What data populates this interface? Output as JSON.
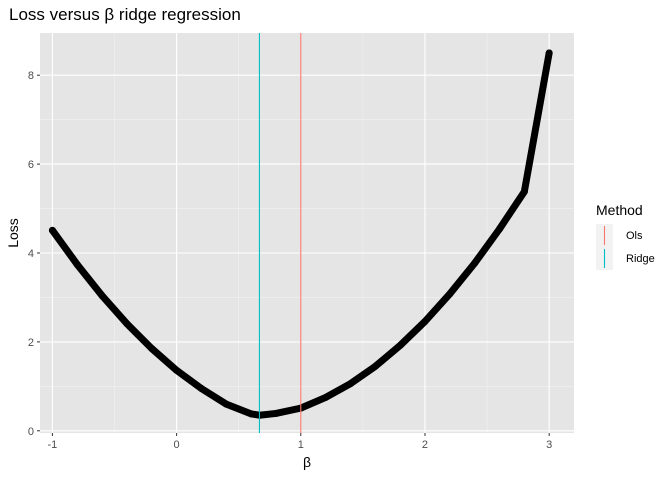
{
  "chart_data": {
    "type": "scatter",
    "title": "Loss versus β ridge regression",
    "xlabel": "β",
    "ylabel": "Loss",
    "xlim": [
      -1.1,
      3.2
    ],
    "ylim": [
      -0.05,
      8.95
    ],
    "x_ticks": [
      -1,
      0,
      1,
      2,
      3
    ],
    "x_tick_labels": [
      "-1",
      "0",
      "1",
      "2",
      "3"
    ],
    "y_ticks": [
      0,
      2,
      4,
      6,
      8
    ],
    "y_tick_labels": [
      "0",
      "2",
      "4",
      "6",
      "8"
    ],
    "grid": true,
    "legend_position": "right",
    "background_color": "#e5e5e5",
    "curve": {
      "name": "Loss",
      "color": "#000000",
      "x": [
        -1.0,
        -0.8,
        -0.6,
        -0.4,
        -0.2,
        0.0,
        0.2,
        0.4,
        0.6,
        0.667,
        0.8,
        1.0,
        1.2,
        1.4,
        1.6,
        1.8,
        2.0,
        2.2,
        2.4,
        2.6,
        2.8,
        3.0
      ],
      "y": [
        4.51,
        3.74,
        3.04,
        2.41,
        1.85,
        1.36,
        0.95,
        0.6,
        0.38,
        0.35,
        0.39,
        0.51,
        0.75,
        1.06,
        1.45,
        1.92,
        2.46,
        3.08,
        3.77,
        4.54,
        5.38,
        8.5
      ]
    },
    "vlines": [
      {
        "name": "Ols",
        "x": 1.0,
        "color": "#f8766d"
      },
      {
        "name": "Ridge",
        "x": 0.667,
        "color": "#00bfc4"
      }
    ],
    "legend": {
      "title": "Method",
      "items": [
        "Ols",
        "Ridge"
      ]
    }
  }
}
